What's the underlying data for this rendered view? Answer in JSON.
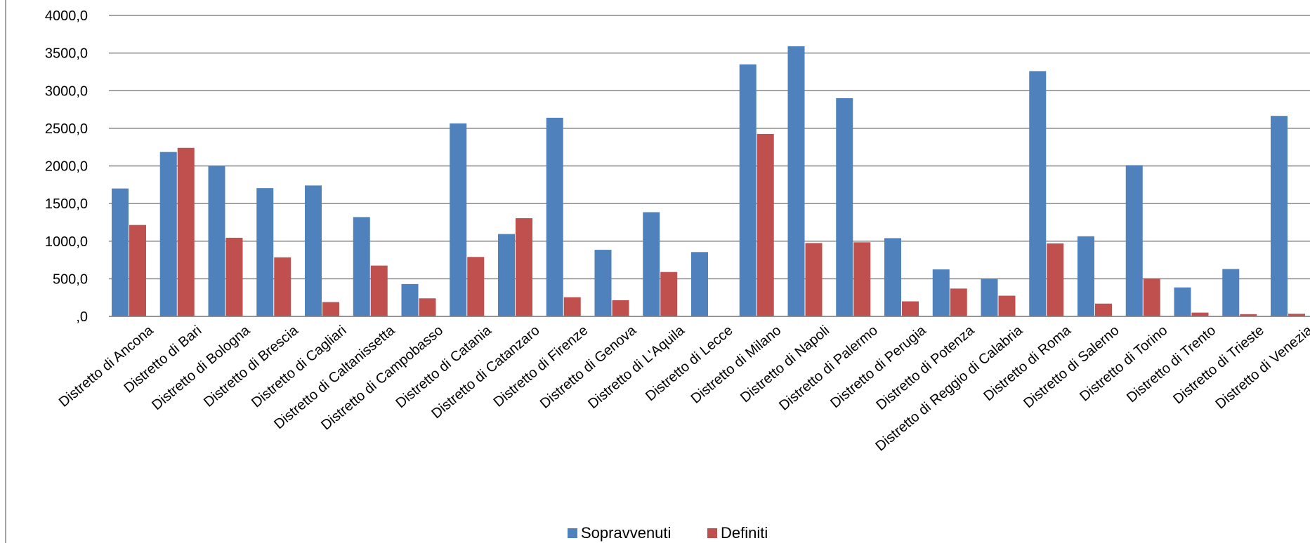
{
  "chart_data": {
    "type": "bar",
    "title": "",
    "xlabel": "",
    "ylabel": "",
    "ylim": [
      0,
      4000
    ],
    "yticks": [
      0,
      500,
      1000,
      1500,
      2000,
      2500,
      3000,
      3500,
      4000
    ],
    "ytick_labels": [
      ",0",
      "500,0",
      "1000,0",
      "1500,0",
      "2000,0",
      "2500,0",
      "3000,0",
      "3500,0",
      "4000,0"
    ],
    "grid": "horizontal",
    "legend_position": "bottom",
    "categories": [
      "Distretto di Ancona",
      "Distretto di Bari",
      "Distretto di Bologna",
      "Distretto di Brescia",
      "Distretto di Cagliari",
      "Distretto di Caltanissetta",
      "Distretto di Campobasso",
      "Distretto di Catania",
      "Distretto di Catanzaro",
      "Distretto di Firenze",
      "Distretto di Genova",
      "Distretto di L'Aquila",
      "Distretto di Lecce",
      "Distretto di Milano",
      "Distretto di Napoli",
      "Distretto di Palermo",
      "Distretto di Perugia",
      "Distretto di Potenza",
      "Distretto di Reggio di Calabria",
      "Distretto di Roma",
      "Distretto di Salerno",
      "Distretto di Torino",
      "Distretto di Trento",
      "Distretto di Trieste",
      "Distretto di Venezia"
    ],
    "series": [
      {
        "name": "Sopravvenuti",
        "color": "#4F81BD",
        "values": [
          1700,
          2185,
          2000,
          1705,
          1740,
          1320,
          430,
          2565,
          1095,
          2640,
          885,
          1385,
          855,
          3350,
          3590,
          2900,
          1040,
          625,
          500,
          3260,
          1065,
          2010,
          385,
          630,
          2665
        ]
      },
      {
        "name": "Definiti",
        "color": "#C0504D",
        "values": [
          1215,
          2240,
          1045,
          785,
          190,
          675,
          240,
          790,
          1305,
          255,
          215,
          590,
          0,
          2425,
          975,
          985,
          200,
          370,
          275,
          970,
          170,
          505,
          50,
          30,
          35
        ]
      }
    ]
  }
}
